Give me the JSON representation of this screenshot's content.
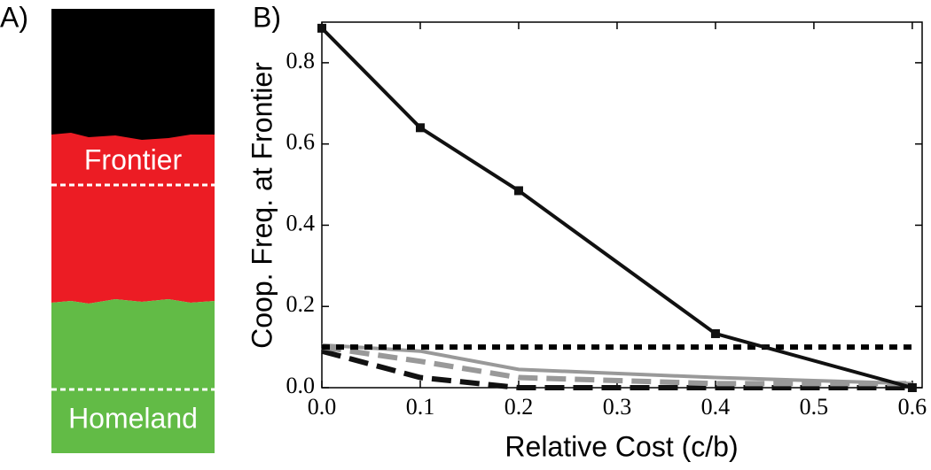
{
  "panel_a": {
    "label": "A)",
    "regions": [
      "Frontier",
      "Homeland"
    ]
  },
  "chart_data": {
    "type": "line",
    "panel_label": "B)",
    "xlabel": "Relative Cost (c/b)",
    "ylabel": "Coop. Freq. at Frontier",
    "x": [
      0,
      0.1,
      0.2,
      0.4,
      0.6
    ],
    "series": [
      {
        "color": "#111111",
        "style": "solid",
        "markers": true,
        "values": [
          0.885,
          0.64,
          0.485,
          0.133,
          0.0
        ]
      },
      {
        "color": "#000000",
        "style": "dotted",
        "values": [
          0.1,
          0.1,
          0.1,
          0.1,
          0.1
        ]
      },
      {
        "color": "#999999",
        "style": "solid",
        "values": [
          0.105,
          0.09,
          0.045,
          0.025,
          0.01
        ]
      },
      {
        "color": "#999999",
        "style": "dashed",
        "values": [
          0.1,
          0.065,
          0.025,
          0.01,
          0.01
        ]
      },
      {
        "color": "#111111",
        "style": "dashed",
        "values": [
          0.09,
          0.025,
          0.0,
          0.0,
          0.0
        ]
      }
    ],
    "xlim": [
      0,
      0.61
    ],
    "ylim": [
      0,
      0.9
    ],
    "xticks": [
      {
        "value": 0,
        "label": "0.0"
      },
      0.1,
      0.2,
      0.3,
      0.4,
      0.5,
      0.6
    ],
    "yticks": [
      {
        "value": 0,
        "label": "0.0"
      },
      0.2,
      0.4,
      0.6,
      0.8
    ],
    "grid": false
  }
}
